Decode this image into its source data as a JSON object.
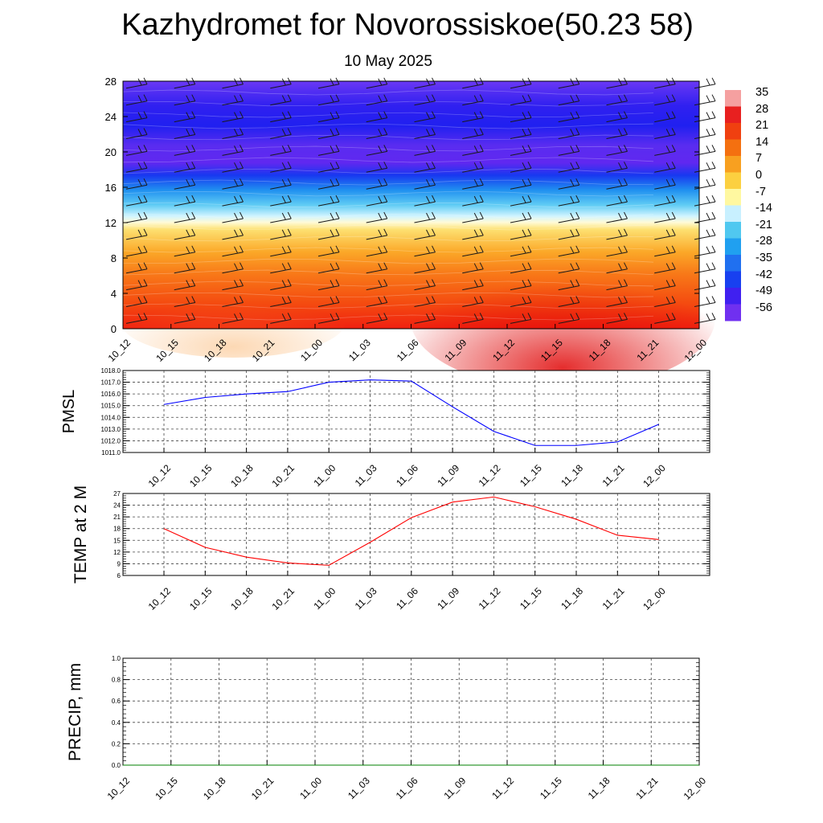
{
  "title": "Kazhydromet for Novorossiskoe(50.23 58)",
  "subtitle": "10 May 2025",
  "chart_data": [
    {
      "type": "heatmap",
      "name": "vertical temperature cross-section with wind barbs",
      "x_tick_labels": [
        "10_12",
        "10_15",
        "10_18",
        "10_21",
        "11_00",
        "11_03",
        "11_06",
        "11_09",
        "11_12",
        "11_15",
        "11_18",
        "11_21",
        "12_00"
      ],
      "y_tick_labels": [
        "0",
        "4",
        "8",
        "12",
        "16",
        "20",
        "24",
        "28"
      ],
      "ylim": [
        0,
        28
      ],
      "colorbar_labels": [
        "35",
        "28",
        "21",
        "14",
        "7",
        "0",
        "-7",
        "-14",
        "-21",
        "-28",
        "-35",
        "-42",
        "-49",
        "-56"
      ],
      "colorbar_colors": [
        "#f5a0a0",
        "#e82020",
        "#f04010",
        "#f47010",
        "#f8a020",
        "#fcd040",
        "#fff8a0",
        "#c8f0ff",
        "#50c8f0",
        "#20a0f0",
        "#2070f0",
        "#1840f0",
        "#4020f0",
        "#7030f0"
      ],
      "surface_temps": [
        18,
        13,
        10.5,
        9,
        8.5,
        14.5,
        21,
        25,
        26.5,
        24,
        20.5,
        16,
        15
      ]
    },
    {
      "type": "line",
      "ylabel": "PMSL",
      "x": [
        "10_12",
        "10_15",
        "10_18",
        "10_21",
        "11_00",
        "11_03",
        "11_06",
        "11_09",
        "11_12",
        "11_15",
        "11_18",
        "11_21",
        "12_00"
      ],
      "values": [
        1015.1,
        1015.7,
        1016.0,
        1016.2,
        1017.0,
        1017.2,
        1017.1,
        1014.9,
        1012.8,
        1011.6,
        1011.6,
        1011.9,
        1013.4
      ],
      "ylim": [
        1011.0,
        1018.0
      ],
      "y_tick_labels": [
        "1011.0",
        "1012.0",
        "1013.0",
        "1014.0",
        "1015.0",
        "1016.0",
        "1017.0",
        "1018.0"
      ],
      "color": "#0000ff",
      "grid": true
    },
    {
      "type": "line",
      "ylabel": "TEMP at 2 M",
      "x": [
        "10_12",
        "10_15",
        "10_18",
        "10_21",
        "11_00",
        "11_03",
        "11_06",
        "11_09",
        "11_12",
        "11_15",
        "11_18",
        "11_21",
        "12_00"
      ],
      "values": [
        18.0,
        13.2,
        10.7,
        9.2,
        8.6,
        14.5,
        20.8,
        24.8,
        26.1,
        23.6,
        20.4,
        16.3,
        15.2
      ],
      "ylim": [
        6,
        27
      ],
      "y_tick_labels": [
        "6",
        "9",
        "12",
        "15",
        "18",
        "21",
        "24",
        "27"
      ],
      "color": "#ff0000",
      "grid": true
    },
    {
      "type": "line",
      "ylabel": "PRECIP, mm",
      "x": [
        "10_12",
        "10_15",
        "10_18",
        "10_21",
        "11_00",
        "11_03",
        "11_06",
        "11_09",
        "11_12",
        "11_15",
        "11_18",
        "11_21",
        "12_00"
      ],
      "values": [
        0,
        0,
        0,
        0,
        0,
        0,
        0,
        0,
        0,
        0,
        0,
        0,
        0
      ],
      "ylim": [
        0,
        1.0
      ],
      "y_tick_labels": [
        "0.0",
        "0.2",
        "0.4",
        "0.6",
        "0.8",
        "1.0"
      ],
      "color": "#008000",
      "grid": true
    }
  ]
}
